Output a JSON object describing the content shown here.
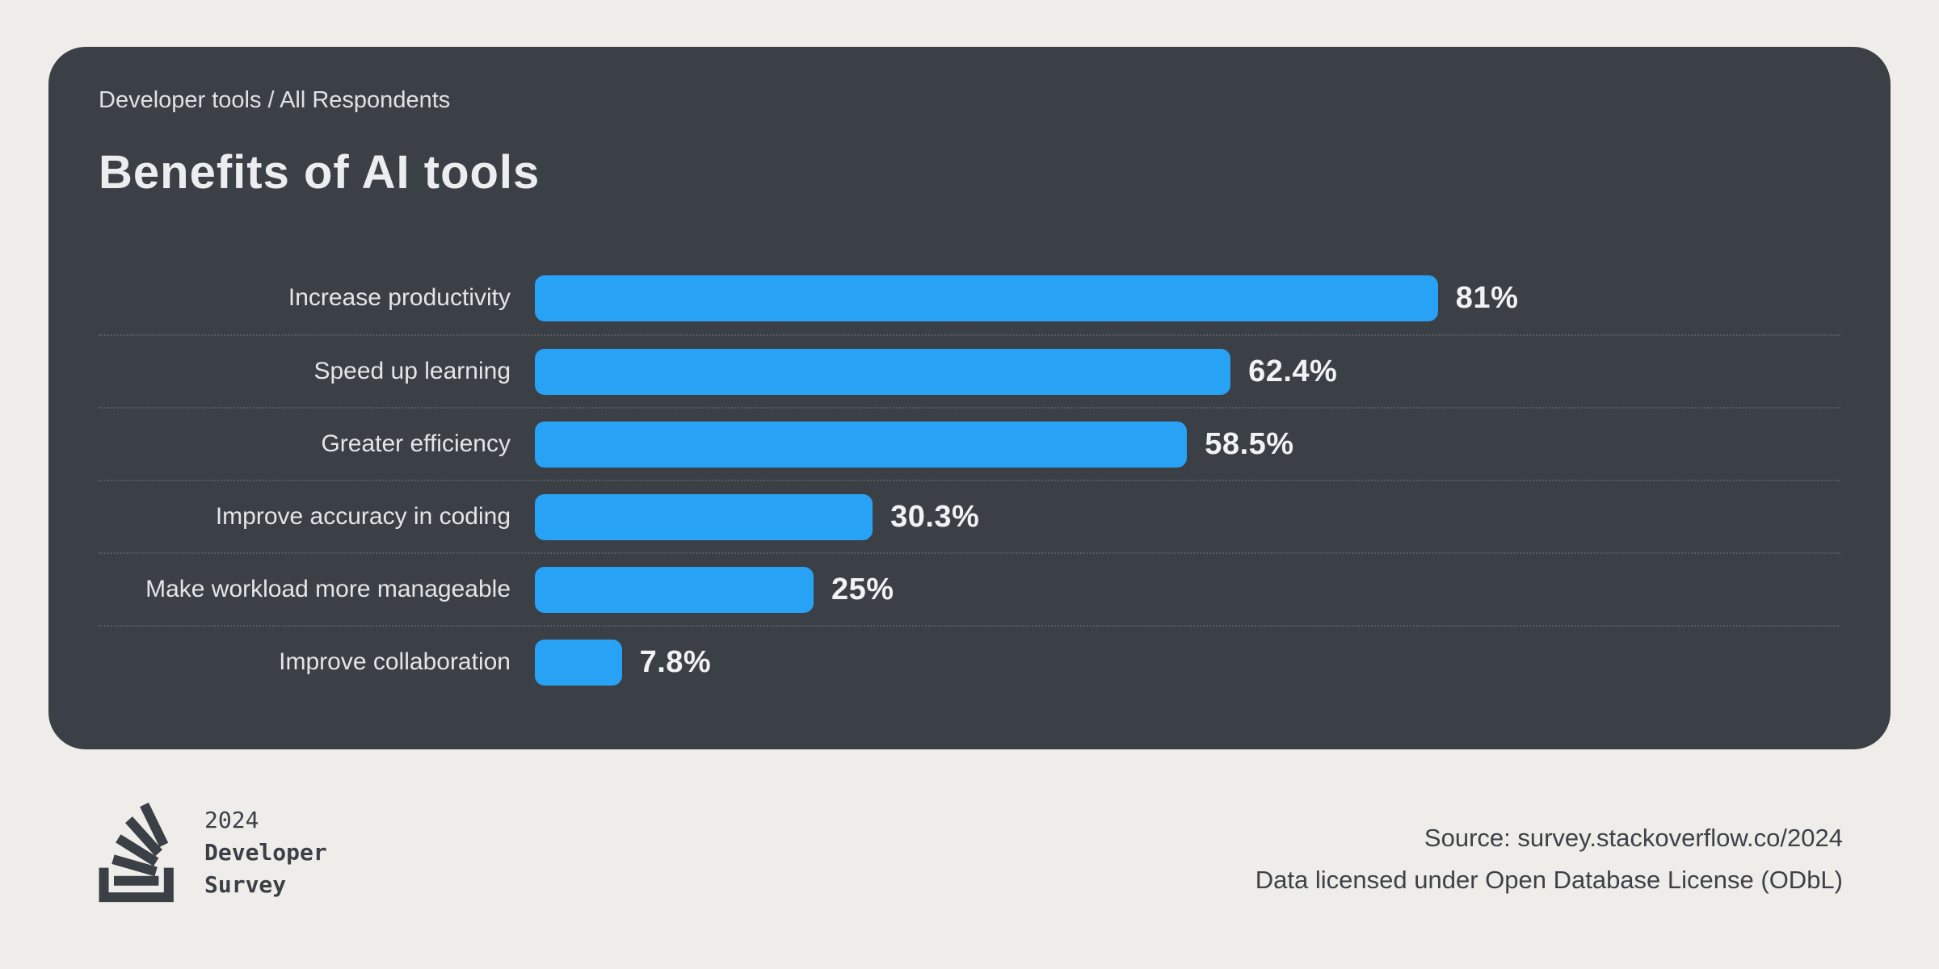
{
  "card": {
    "subtitle": "Developer tools / All Respondents",
    "title": "Benefits of AI tools",
    "background": "#3b4046"
  },
  "chart_data": {
    "type": "bar",
    "orientation": "horizontal",
    "title": "Benefits of AI tools",
    "subtitle": "Developer tools / All Respondents",
    "categories": [
      "Increase productivity",
      "Speed up learning",
      "Greater efficiency",
      "Improve accuracy in coding",
      "Make workload more manageable",
      "Improve collaboration"
    ],
    "values": [
      81,
      62.4,
      58.5,
      30.3,
      25,
      7.8
    ],
    "value_labels": [
      "81%",
      "62.4%",
      "58.5%",
      "30.3%",
      "25%",
      "7.8%"
    ],
    "xlim": [
      0,
      100
    ],
    "grid": "dotted-row-separators",
    "legend": "none",
    "bar_color": "#27a2f5"
  },
  "footer": {
    "logo": {
      "icon": "stackoverflow-icon",
      "year": "2024",
      "line1": "Developer",
      "line2": "Survey"
    },
    "source_line1": "Source: survey.stackoverflow.co/2024",
    "source_line2": "Data licensed under Open Database License (ODbL)"
  }
}
